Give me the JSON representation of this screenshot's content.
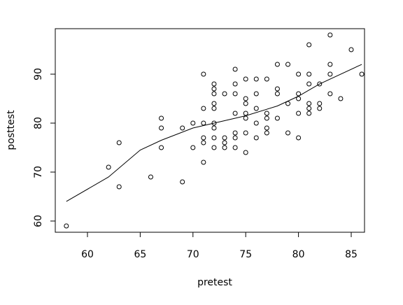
{
  "chart_data": {
    "type": "scatter",
    "x_label": "pretest",
    "y_label": "posttest",
    "xlim": [
      56.95,
      86.26
    ],
    "ylim": [
      57.71,
      99.29
    ],
    "xticks": [
      60,
      65,
      70,
      75,
      80,
      85
    ],
    "yticks": [
      60,
      70,
      80,
      90
    ],
    "point_color": "#000000",
    "line_color": "#000000",
    "points": {
      "x": [
        58,
        62,
        63,
        63,
        66,
        67,
        67,
        67,
        69,
        69,
        70,
        70,
        71,
        71,
        71,
        71,
        71,
        71,
        72,
        72,
        72,
        72,
        72,
        72,
        72,
        72,
        72,
        73,
        73,
        73,
        73,
        74,
        74,
        74,
        74,
        74,
        74,
        74,
        75,
        75,
        75,
        75,
        75,
        75,
        75,
        76,
        76,
        76,
        76,
        76,
        77,
        77,
        77,
        77,
        77,
        78,
        78,
        78,
        78,
        79,
        79,
        79,
        80,
        80,
        80,
        80,
        80,
        81,
        81,
        81,
        81,
        81,
        81,
        82,
        82,
        82,
        83,
        83,
        83,
        83,
        84,
        85,
        86
      ],
      "y": [
        59,
        71,
        76,
        67,
        69,
        81,
        79,
        75,
        79,
        68,
        80,
        75,
        90,
        83,
        80,
        77,
        76,
        72,
        88,
        87,
        86,
        84,
        83,
        80,
        79,
        77,
        75,
        86,
        77,
        76,
        75,
        91,
        88,
        86,
        82,
        78,
        77,
        75,
        89,
        85,
        84,
        82,
        81,
        78,
        74,
        89,
        86,
        83,
        80,
        77,
        89,
        82,
        81,
        79,
        78,
        92,
        87,
        86,
        81,
        92,
        84,
        78,
        90,
        86,
        85,
        82,
        77,
        96,
        90,
        88,
        84,
        83,
        82,
        88,
        84,
        83,
        98,
        92,
        90,
        86,
        85,
        95,
        90
      ]
    },
    "fit": {
      "x": [
        58,
        62,
        65,
        67,
        70,
        72,
        75,
        78,
        80,
        82,
        86
      ],
      "y": [
        64,
        69,
        74.5,
        76.5,
        79,
        80,
        81.5,
        83.5,
        85.5,
        88,
        92
      ]
    }
  }
}
